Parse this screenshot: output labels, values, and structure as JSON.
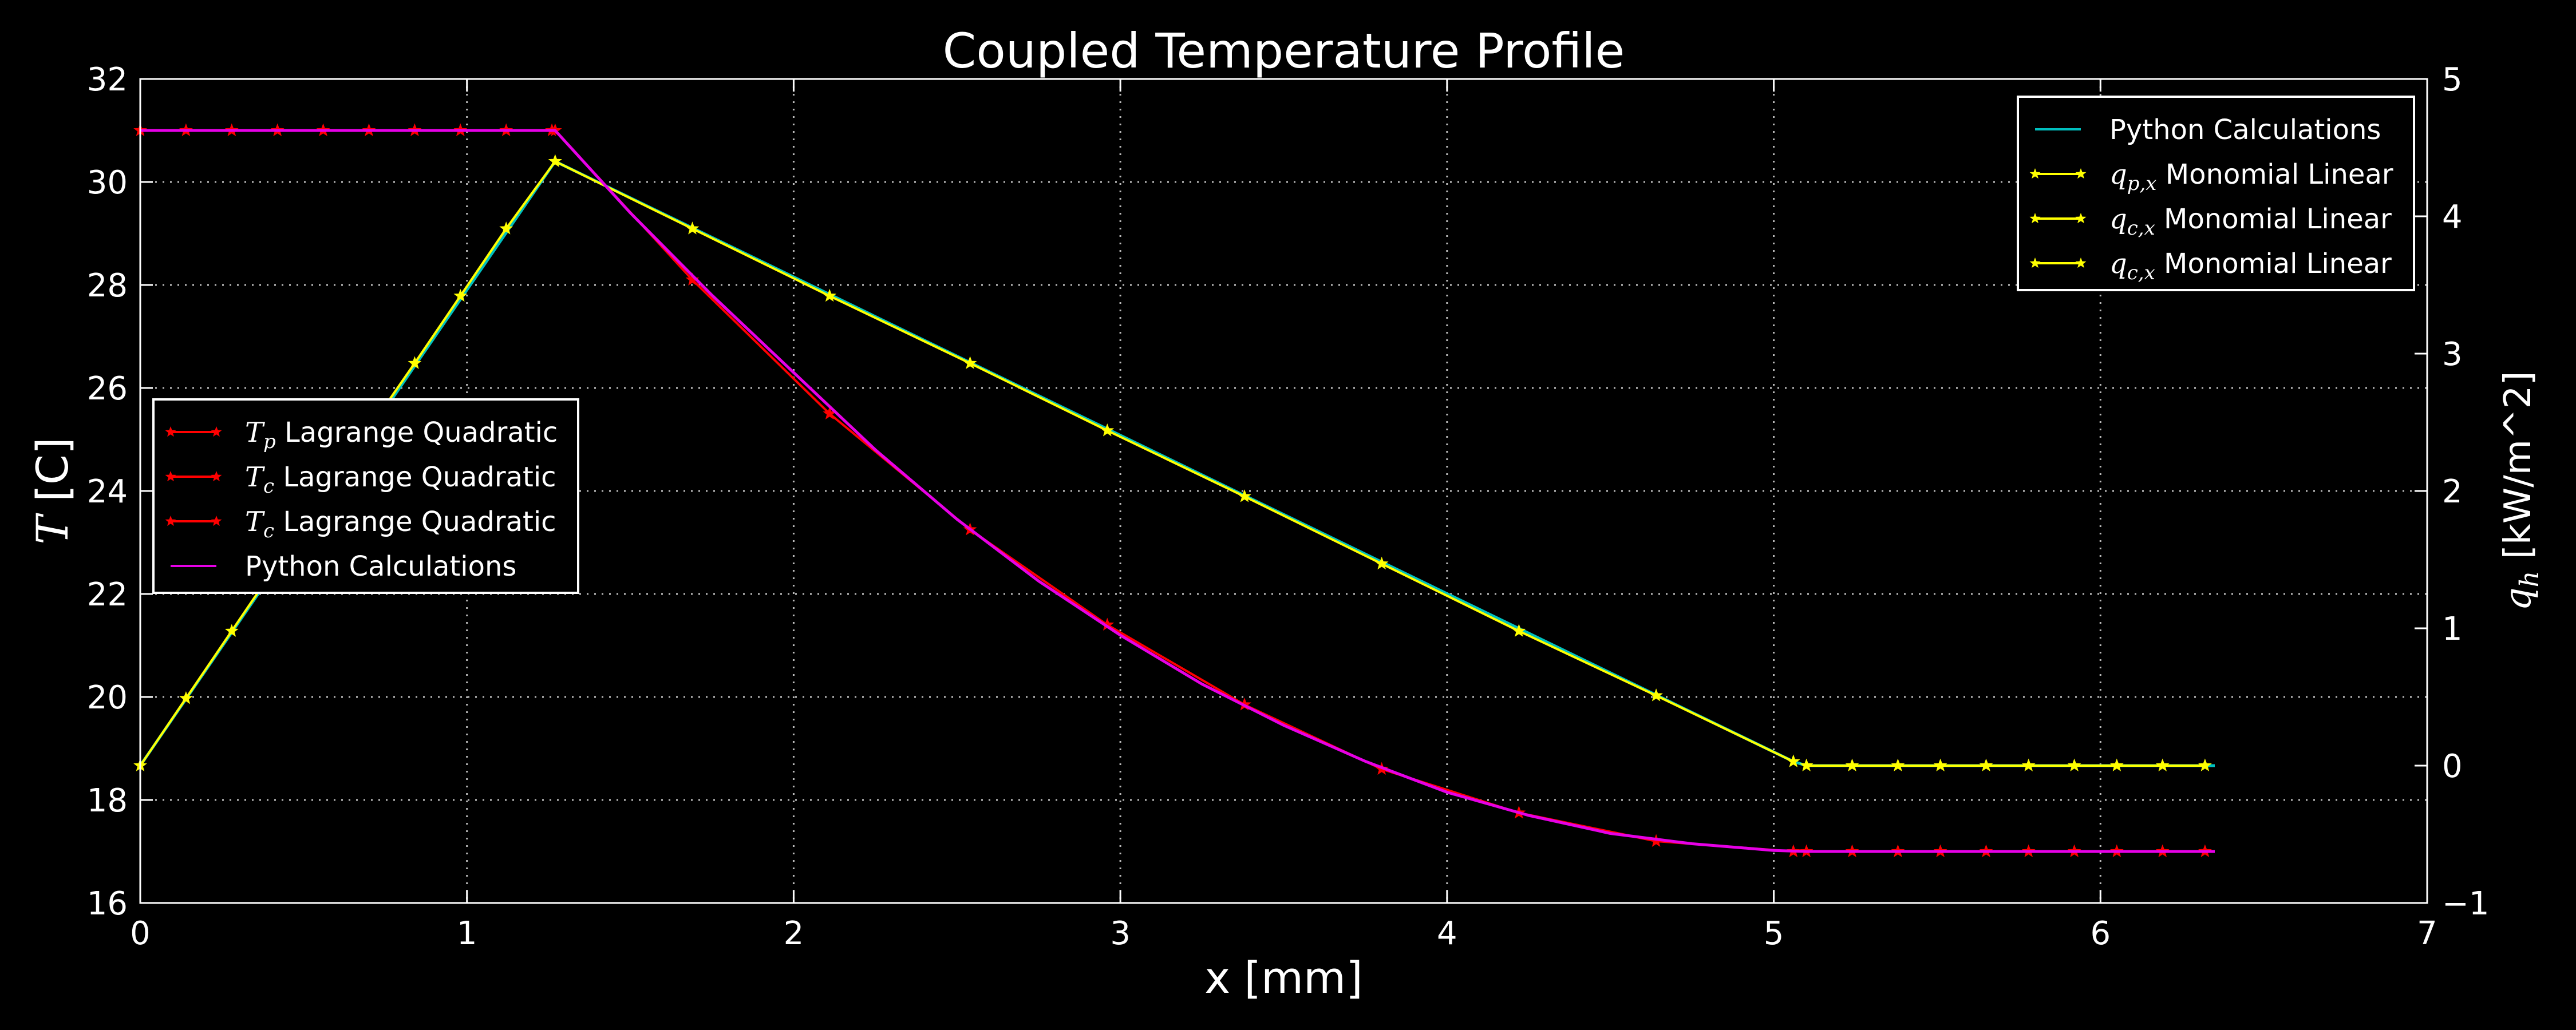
{
  "chart_data": {
    "type": "line",
    "title": "Coupled Temperature Profile",
    "xlabel": "x [mm]",
    "ylabel_left": {
      "sym": "T",
      "unit": " [C]"
    },
    "ylabel_right": {
      "sym": "q",
      "sub": "h",
      "unit": "  [kW/m^2]"
    },
    "xlim": [
      0,
      7
    ],
    "ylim_left": [
      16,
      32
    ],
    "ylim_right": [
      -1,
      5
    ],
    "xticks": [
      0,
      1,
      2,
      3,
      4,
      5,
      6,
      7
    ],
    "yticks_left": [
      16,
      18,
      20,
      22,
      24,
      26,
      28,
      30,
      32
    ],
    "yticks_right": [
      -1,
      0,
      1,
      2,
      3,
      4,
      5
    ],
    "grid": true,
    "temperature_series": [
      {
        "name": "T_p Lagrange Quadratic",
        "color": "#ff0000",
        "marker": "star",
        "x": [
          0,
          0.14,
          0.28,
          0.42,
          0.56,
          0.7,
          0.84,
          0.98,
          1.12,
          1.26
        ],
        "y": [
          31.0,
          31.0,
          31.0,
          31.0,
          31.0,
          31.0,
          31.0,
          31.0,
          31.0,
          31.0
        ]
      },
      {
        "name": "T_c Lagrange Quadratic",
        "color": "#ff0000",
        "marker": "star",
        "x": [
          1.27,
          1.69,
          2.11,
          2.54,
          2.96,
          3.38,
          3.8,
          4.22,
          4.64,
          5.06
        ],
        "y": [
          31.0,
          28.1,
          25.5,
          23.25,
          21.4,
          19.85,
          18.6,
          17.75,
          17.2,
          17.0
        ]
      },
      {
        "name": "T_c Lagrange Quadratic",
        "color": "#ff0000",
        "marker": "star",
        "x": [
          5.1,
          5.24,
          5.38,
          5.51,
          5.65,
          5.78,
          5.92,
          6.05,
          6.19,
          6.32
        ],
        "y": [
          17.0,
          17.0,
          17.0,
          17.0,
          17.0,
          17.0,
          17.0,
          17.0,
          17.0,
          17.0
        ]
      },
      {
        "name": "Python Calculations",
        "color": "#e600e6",
        "marker": "none",
        "x": [
          0,
          1.27,
          1.5,
          1.75,
          2.0,
          2.25,
          2.5,
          2.75,
          3.0,
          3.25,
          3.5,
          3.75,
          4.0,
          4.25,
          4.5,
          4.75,
          5.0,
          5.1,
          6.35
        ],
        "y": [
          31.0,
          31.0,
          29.4,
          27.8,
          26.3,
          24.8,
          23.45,
          22.25,
          21.2,
          20.25,
          19.45,
          18.75,
          18.15,
          17.7,
          17.35,
          17.15,
          17.02,
          17.0,
          17.0
        ]
      }
    ],
    "heatflux_series": [
      {
        "name": "Python Calculations",
        "color": "#00bfbf",
        "marker": "none",
        "x": [
          0,
          1.27,
          5.06,
          5.1,
          6.35
        ],
        "y": [
          0.0,
          4.4,
          0.03,
          0.0,
          0.0
        ]
      },
      {
        "name": "q_p,x Monomial Linear",
        "color": "#ffff00",
        "marker": "star",
        "x": [
          0,
          0.14,
          0.28,
          0.42,
          0.56,
          0.7,
          0.84,
          0.98,
          1.12,
          1.27
        ],
        "y": [
          0.0,
          0.49,
          0.98,
          1.47,
          1.96,
          2.45,
          2.93,
          3.42,
          3.91,
          4.4
        ]
      },
      {
        "name": "q_c,x Monomial Linear",
        "color": "#ffff00",
        "marker": "star",
        "x": [
          1.27,
          1.69,
          2.11,
          2.54,
          2.96,
          3.38,
          3.8,
          4.22,
          4.64,
          5.06
        ],
        "y": [
          4.4,
          3.91,
          3.42,
          2.93,
          2.44,
          1.96,
          1.47,
          0.98,
          0.51,
          0.03
        ]
      },
      {
        "name": "q_c,x Monomial Linear",
        "color": "#ffff00",
        "marker": "star",
        "x": [
          5.1,
          5.24,
          5.38,
          5.51,
          5.65,
          5.78,
          5.92,
          6.05,
          6.19,
          6.32
        ],
        "y": [
          0.0,
          0.0,
          0.0,
          0.0,
          0.0,
          0.0,
          0.0,
          0.0,
          0.0,
          0.0
        ]
      }
    ],
    "legend_left": {
      "placement": "center-left",
      "entries": [
        {
          "sym": "T",
          "sub": "p",
          "text": " Lagrange Quadratic",
          "color": "#ff0000",
          "marker": "star"
        },
        {
          "sym": "T",
          "sub": "c",
          "text": " Lagrange Quadratic",
          "color": "#ff0000",
          "marker": "star"
        },
        {
          "sym": "T",
          "sub": "c",
          "text": " Lagrange Quadratic",
          "color": "#ff0000",
          "marker": "star"
        },
        {
          "sym": "",
          "sub": "",
          "text": "Python Calculations",
          "color": "#e600e6",
          "marker": "none"
        }
      ]
    },
    "legend_right": {
      "placement": "top-right",
      "entries": [
        {
          "sym": "",
          "sub": "",
          "text": "Python Calculations",
          "color": "#00bfbf",
          "marker": "none"
        },
        {
          "sym": "q",
          "sub": "p,x",
          "text": " Monomial Linear",
          "color": "#ffff00",
          "marker": "star"
        },
        {
          "sym": "q",
          "sub": "c,x",
          "text": " Monomial Linear",
          "color": "#ffff00",
          "marker": "star"
        },
        {
          "sym": "q",
          "sub": "c,x",
          "text": " Monomial Linear",
          "color": "#ffff00",
          "marker": "star"
        }
      ]
    }
  }
}
